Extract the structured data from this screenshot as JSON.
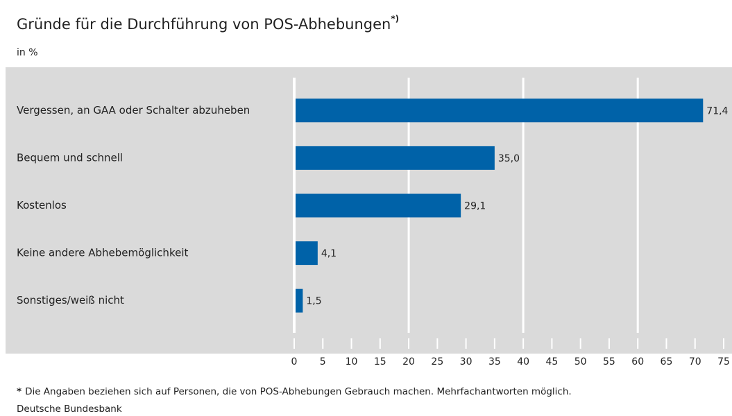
{
  "chart_data": {
    "type": "barh",
    "title": "Gründe für die Durchführung von POS-Abhebungen",
    "title_note": "*)",
    "subtitle": "in %",
    "categories": [
      "Vergessen, an GAA oder Schalter abzuheben",
      "Bequem und schnell",
      "Kostenlos",
      "Keine andere Abhebemöglichkeit",
      "Sonstiges/weiß nicht"
    ],
    "values": [
      71.4,
      35.0,
      29.1,
      4.1,
      1.5
    ],
    "value_labels": [
      "71,4",
      "35,0",
      "29,1",
      "4,1",
      "1,5"
    ],
    "color": "#0062a8",
    "xlim": [
      0,
      75
    ],
    "xticks": [
      0,
      5,
      10,
      15,
      20,
      25,
      30,
      35,
      40,
      45,
      50,
      55,
      60,
      65,
      70,
      75
    ],
    "gridlines": [
      0,
      20,
      40,
      60
    ],
    "footnote_marker": "*",
    "footnote": "Die Angaben beziehen sich auf Personen, die von POS-Abhebungen Gebrauch machen. Mehrfachantworten möglich.",
    "source": "Deutsche Bundesbank"
  }
}
